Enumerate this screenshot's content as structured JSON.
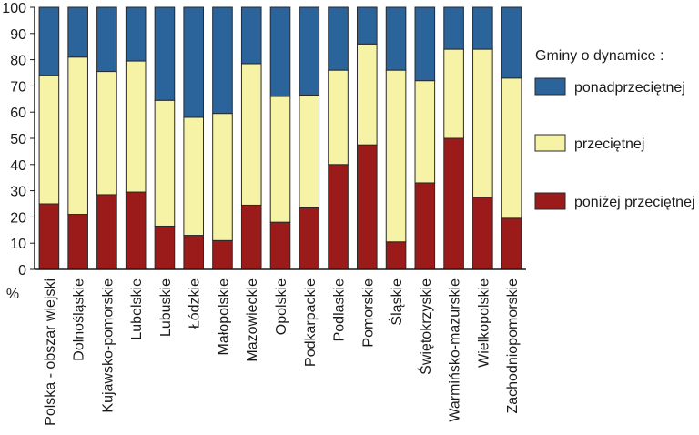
{
  "chart_data": {
    "type": "bar",
    "stacked": true,
    "title": "",
    "xlabel": "",
    "ylabel": "%",
    "ylim": [
      0,
      100
    ],
    "yticks": [
      0,
      10,
      20,
      30,
      40,
      50,
      60,
      70,
      80,
      90,
      100
    ],
    "categories": [
      "Polska - obszar wiejski",
      "Dolnośląskie",
      "Kujawsko-pomorskie",
      "Lubelskie",
      "Lubuskie",
      "Łódzkie",
      "Małopolskie",
      "Mazowieckie",
      "Opolskie",
      "Podkarpackie",
      "Podlaskie",
      "Pomorskie",
      "Śląskie",
      "Świętokrzyskie",
      "Warmińsko-mazurskie",
      "Wielkopolskie",
      "Zachodniopomorskie"
    ],
    "series": [
      {
        "name": "poniżej przeciętnej",
        "color": "#9b1b1b",
        "values": [
          25,
          21,
          28.5,
          29.5,
          16.5,
          13,
          11,
          24.5,
          18,
          23.5,
          40,
          47.5,
          10.5,
          33,
          50,
          27.5,
          19.5
        ]
      },
      {
        "name": "przeciętnej",
        "color": "#f7f3a6",
        "values": [
          49,
          60,
          47,
          50,
          48,
          45,
          48.5,
          54,
          48,
          43,
          36,
          38.5,
          65.5,
          39,
          34,
          56.5,
          53.5
        ]
      },
      {
        "name": "ponadprzeciętnej",
        "color": "#2b639b",
        "values": [
          26,
          19,
          24.5,
          20.5,
          35.5,
          42,
          40.5,
          21.5,
          34,
          33.5,
          24,
          14,
          24,
          28,
          16,
          16,
          27
        ]
      }
    ],
    "legend": {
      "title": "Gminy o dynamice :",
      "position": "right",
      "order": [
        "ponadprzeciętnej",
        "przeciętnej",
        "poniżej przeciętnej"
      ]
    },
    "grid": false
  }
}
